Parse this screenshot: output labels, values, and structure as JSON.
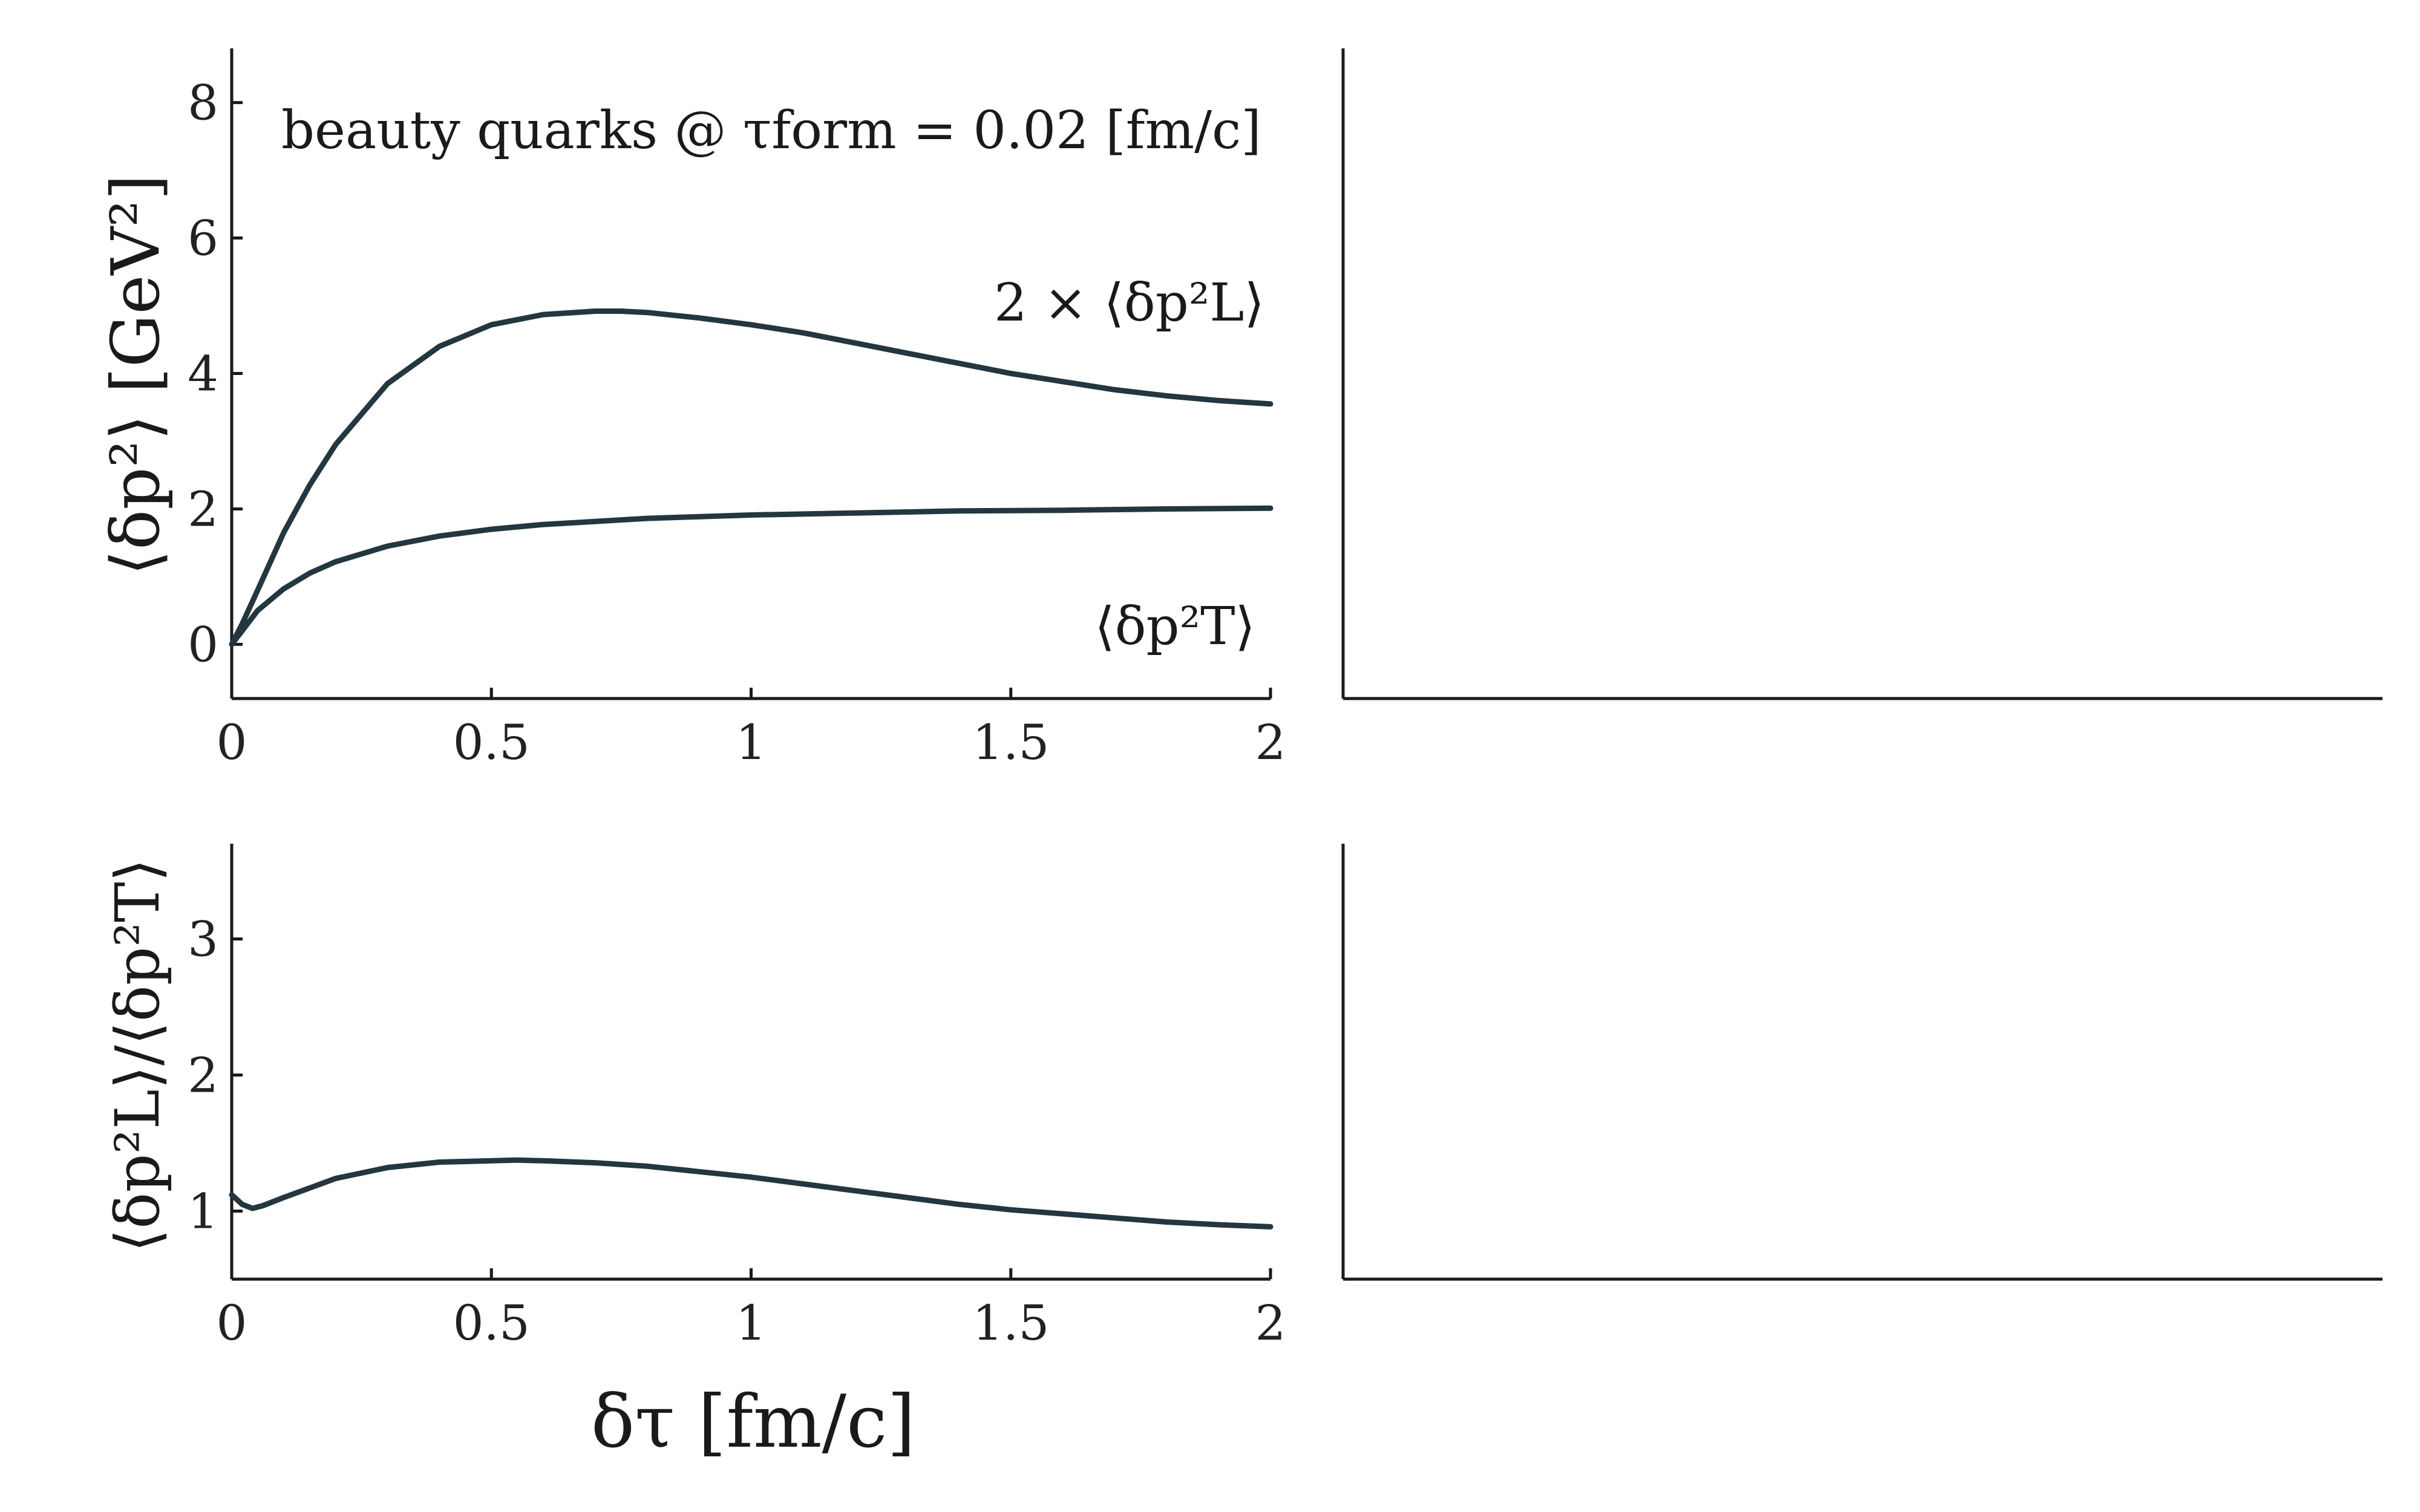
{
  "colors": {
    "series": "#243640",
    "axis": "#1a1a1a",
    "background": "#ffffff"
  },
  "chart_data": [
    {
      "type": "line",
      "panel": "top-left",
      "title": "",
      "xlabel": "",
      "ylabel": "⟨δp²⟩ [GeV²]",
      "xlim": [
        0,
        2
      ],
      "ylim": [
        -0.8,
        8.8
      ],
      "xticks": [
        "0",
        "0.5",
        "1",
        "1.5",
        "2"
      ],
      "yticks": [
        "0",
        "2",
        "4",
        "6",
        "8"
      ],
      "grid": false,
      "annotations": {
        "header": "beauty quarks @ τform = 0.02 [fm/c]",
        "long": "2 × ⟨δp²L⟩",
        "trans": "⟨δp²T⟩"
      },
      "series": [
        {
          "name": "2 × ⟨δp²L⟩",
          "x": [
            0,
            0.02,
            0.05,
            0.1,
            0.15,
            0.2,
            0.3,
            0.4,
            0.5,
            0.6,
            0.7,
            0.75,
            0.8,
            0.9,
            1.0,
            1.1,
            1.2,
            1.3,
            1.4,
            1.5,
            1.6,
            1.7,
            1.8,
            1.9,
            2.0
          ],
          "values": [
            0,
            0.3,
            0.8,
            1.65,
            2.35,
            2.95,
            3.85,
            4.4,
            4.72,
            4.87,
            4.92,
            4.92,
            4.9,
            4.82,
            4.72,
            4.6,
            4.45,
            4.3,
            4.15,
            4.0,
            3.88,
            3.76,
            3.67,
            3.6,
            3.55
          ]
        },
        {
          "name": "⟨δp²T⟩",
          "x": [
            0,
            0.02,
            0.05,
            0.1,
            0.15,
            0.2,
            0.3,
            0.4,
            0.5,
            0.6,
            0.8,
            1.0,
            1.2,
            1.4,
            1.6,
            1.8,
            2.0
          ],
          "values": [
            0,
            0.2,
            0.5,
            0.82,
            1.05,
            1.22,
            1.45,
            1.6,
            1.7,
            1.77,
            1.86,
            1.91,
            1.94,
            1.97,
            1.98,
            2.0,
            2.01
          ]
        }
      ]
    },
    {
      "type": "line",
      "panel": "bottom-left",
      "title": "",
      "xlabel": "δτ [fm/c]",
      "ylabel": "⟨δp²L⟩/⟨δp²T⟩",
      "xlim": [
        0,
        2
      ],
      "ylim": [
        0.5,
        3.7
      ],
      "xticks": [
        "0",
        "0.5",
        "1",
        "1.5",
        "2"
      ],
      "yticks": [
        "1",
        "2",
        "3"
      ],
      "grid": false,
      "series": [
        {
          "name": "",
          "x": [
            0,
            0.02,
            0.04,
            0.06,
            0.1,
            0.15,
            0.2,
            0.3,
            0.4,
            0.5,
            0.55,
            0.6,
            0.7,
            0.8,
            0.9,
            1.0,
            1.1,
            1.2,
            1.3,
            1.4,
            1.5,
            1.6,
            1.7,
            1.8,
            1.9,
            2.0
          ],
          "values": [
            1.12,
            1.05,
            1.02,
            1.04,
            1.1,
            1.17,
            1.24,
            1.32,
            1.36,
            1.37,
            1.375,
            1.37,
            1.355,
            1.33,
            1.29,
            1.25,
            1.2,
            1.15,
            1.1,
            1.05,
            1.01,
            0.98,
            0.95,
            0.92,
            0.9,
            0.885
          ]
        }
      ]
    },
    {
      "type": "line",
      "panel": "top-right",
      "title": "",
      "xlabel": "",
      "ylabel": "",
      "grid": false,
      "series": []
    },
    {
      "type": "line",
      "panel": "bottom-right",
      "title": "",
      "xlabel": "",
      "ylabel": "",
      "grid": false,
      "series": []
    }
  ]
}
